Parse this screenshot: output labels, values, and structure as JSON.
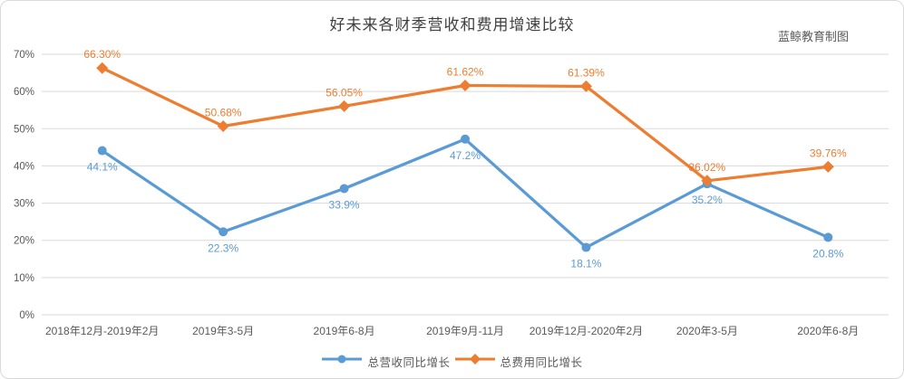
{
  "chart_data": {
    "type": "line",
    "title": "好未来各财季营收和费用增速比较",
    "credit": "蓝鲸教育制图",
    "categories": [
      "2018年12月-2019年2月",
      "2019年3-5月",
      "2019年6-8月",
      "2019年9月-11月",
      "2019年12月-2020年2月",
      "2020年3-5月",
      "2020年6-8月"
    ],
    "series": [
      {
        "name": "总营收同比增长",
        "color": "#5B9BD5",
        "marker": "circle",
        "label_position": "below",
        "values": [
          44.1,
          22.3,
          33.9,
          47.2,
          18.1,
          35.2,
          20.8
        ],
        "labels": [
          "44.1%",
          "22.3%",
          "33.9%",
          "47.2%",
          "18.1%",
          "35.2%",
          "20.8%"
        ]
      },
      {
        "name": "总费用同比增长",
        "color": "#ED7D31",
        "marker": "diamond",
        "label_position": "above",
        "values": [
          66.3,
          50.68,
          56.05,
          61.62,
          61.39,
          36.02,
          39.76
        ],
        "labels": [
          "66.30%",
          "50.68%",
          "56.05%",
          "61.62%",
          "61.39%",
          "36.02%",
          "39.76%"
        ]
      }
    ],
    "y_axis": {
      "min": 0,
      "max": 70,
      "step": 10,
      "tick_labels": [
        "0%",
        "10%",
        "20%",
        "30%",
        "40%",
        "50%",
        "60%",
        "70%"
      ]
    },
    "grid": "horizontal",
    "legend_position": "bottom",
    "colors": {
      "gridline": "#d9d9d9",
      "axis_text": "#595959",
      "frame_border": "#d9d9d9",
      "title_text": "#404040"
    }
  }
}
